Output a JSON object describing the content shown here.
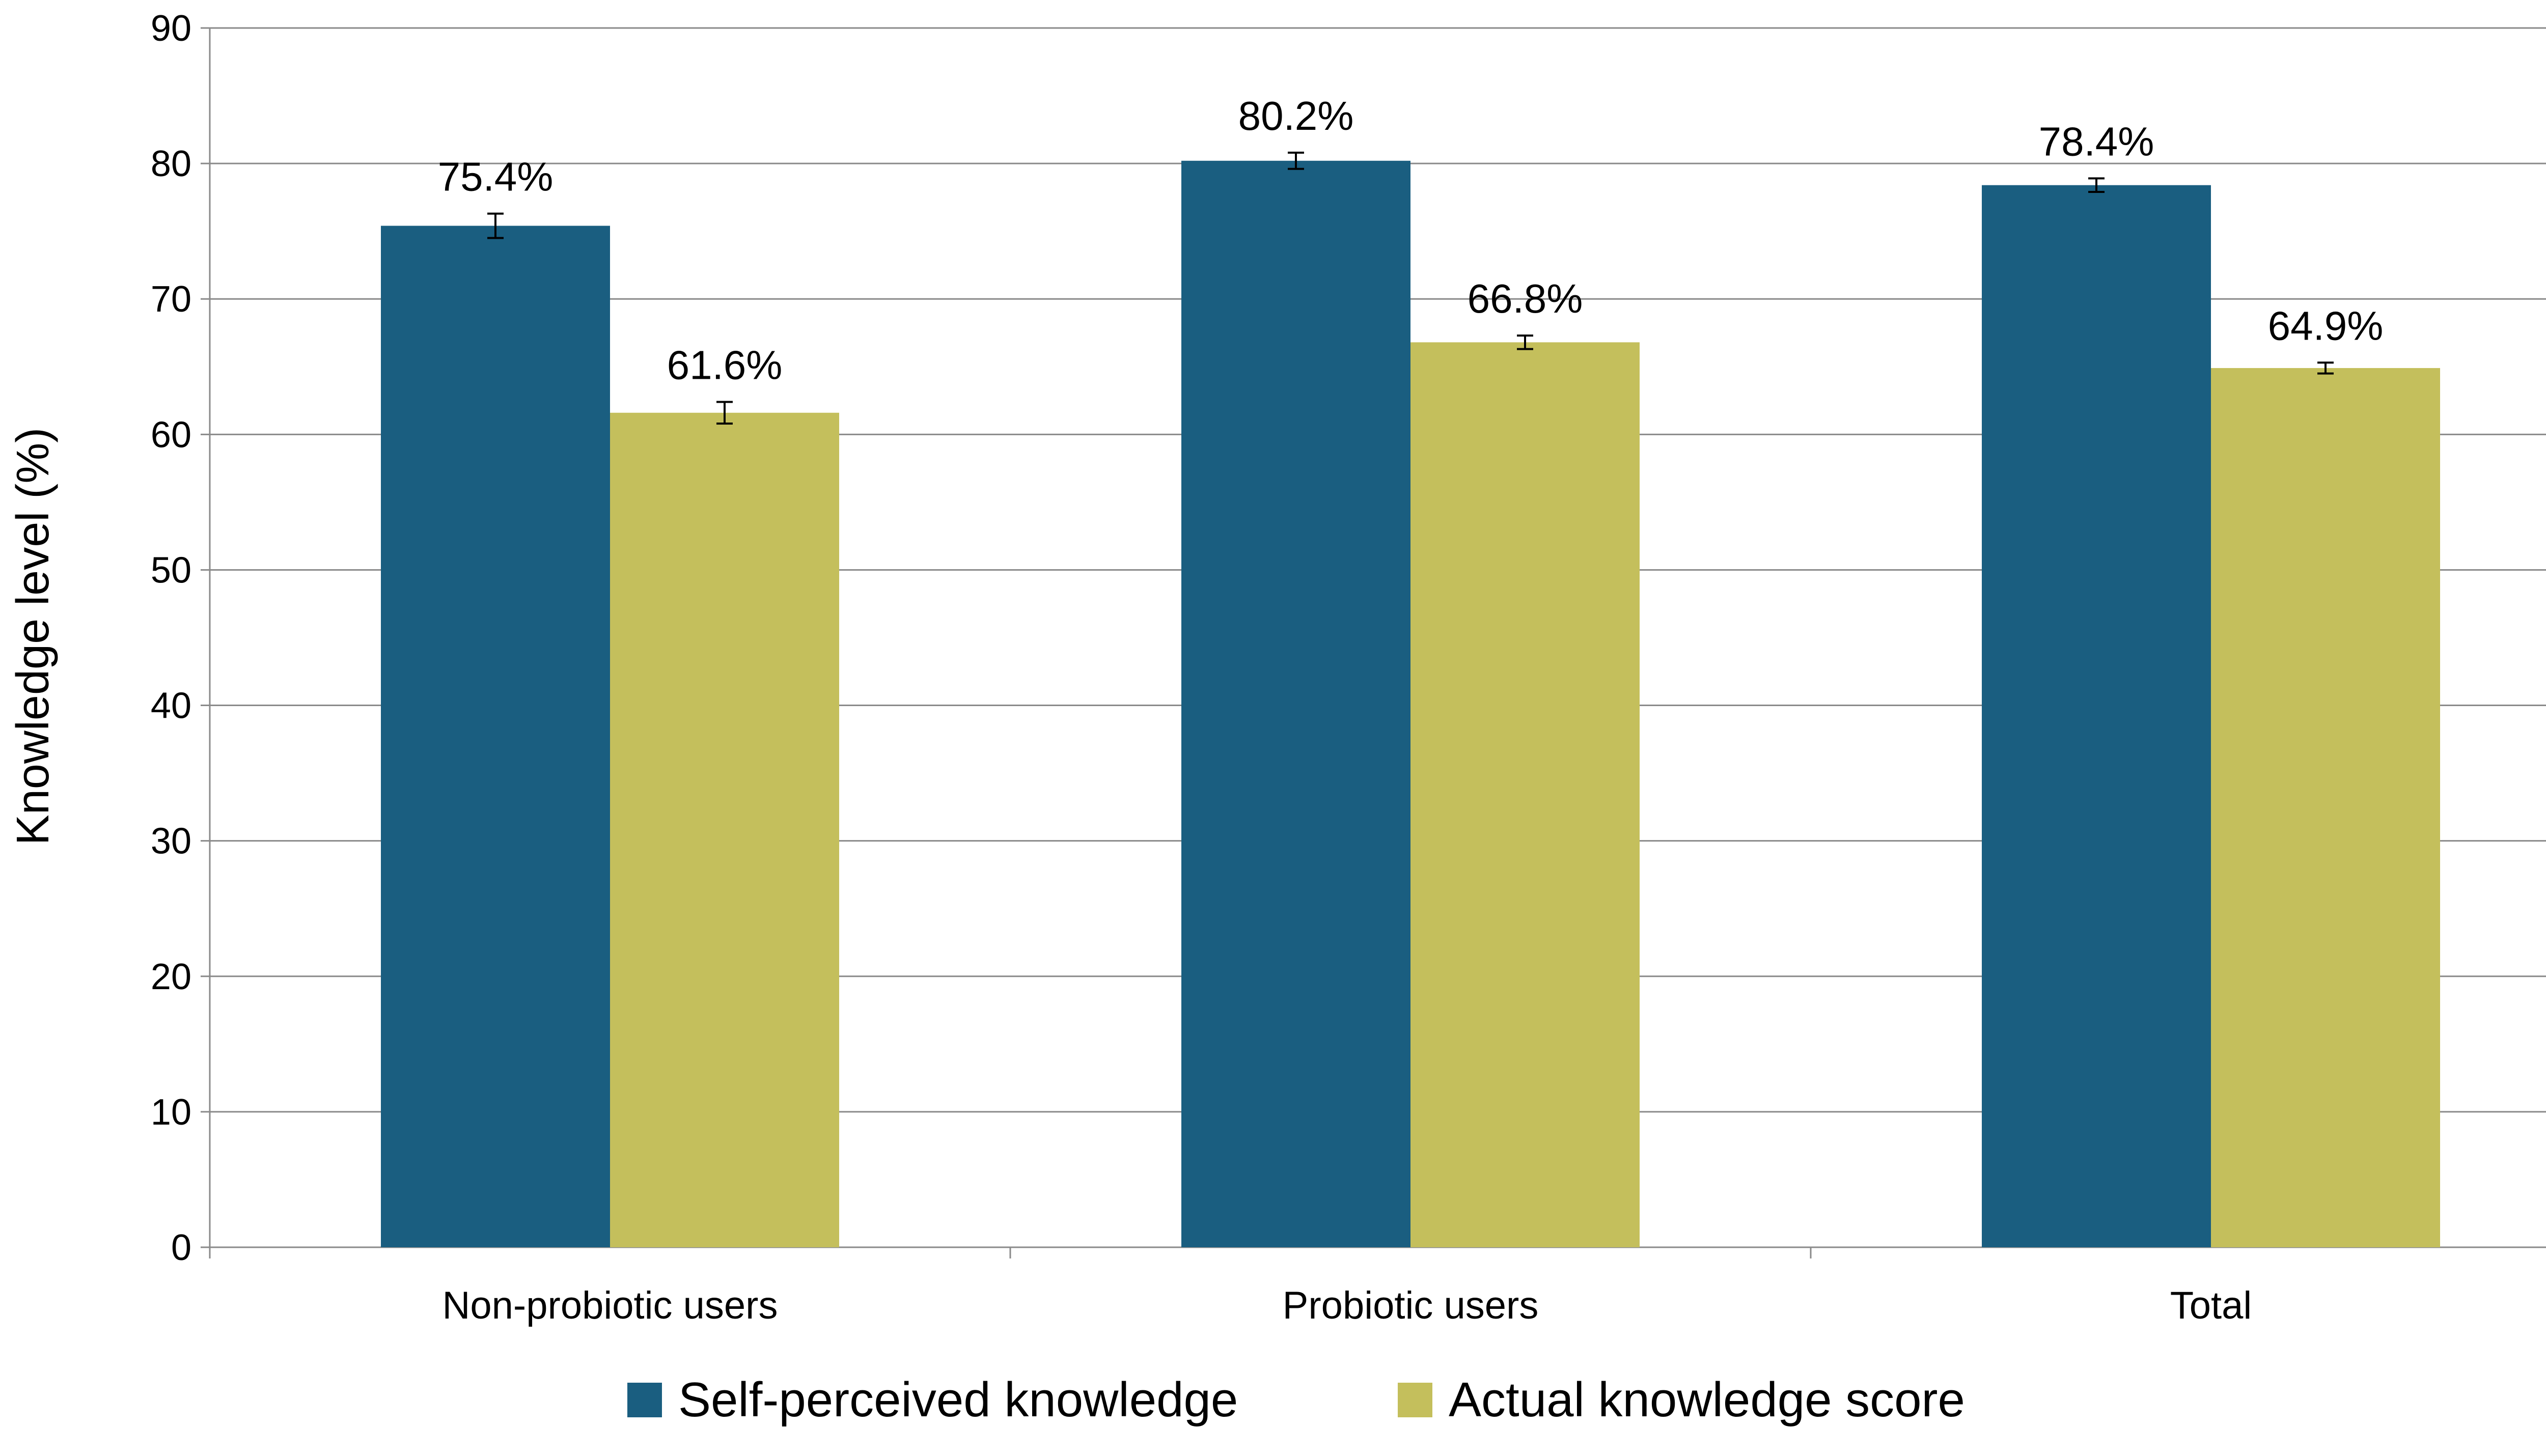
{
  "chart_data": {
    "type": "bar",
    "categories": [
      "Non-probiotic users",
      "Probiotic users",
      "Total"
    ],
    "series": [
      {
        "name": "Self-perceived knowledge",
        "values": [
          75.4,
          80.2,
          78.4
        ],
        "labels": [
          "75.4%",
          "80.2%",
          "78.4%"
        ],
        "errors": [
          0.9,
          0.6,
          0.5
        ],
        "color": "#1a5e80"
      },
      {
        "name": "Actual knowledge score",
        "values": [
          61.6,
          66.8,
          64.9
        ],
        "labels": [
          "61.6%",
          "66.8%",
          "64.9%"
        ],
        "errors": [
          0.8,
          0.5,
          0.4
        ],
        "color": "#c4bf5c"
      }
    ],
    "title": "",
    "xlabel": "",
    "ylabel": "Knowledge level (%)",
    "ylim": [
      0,
      90
    ],
    "yticks": [
      "0",
      "10",
      "20",
      "30",
      "40",
      "50",
      "60",
      "70",
      "80",
      "90"
    ],
    "grid": true,
    "legend_position": "bottom"
  }
}
